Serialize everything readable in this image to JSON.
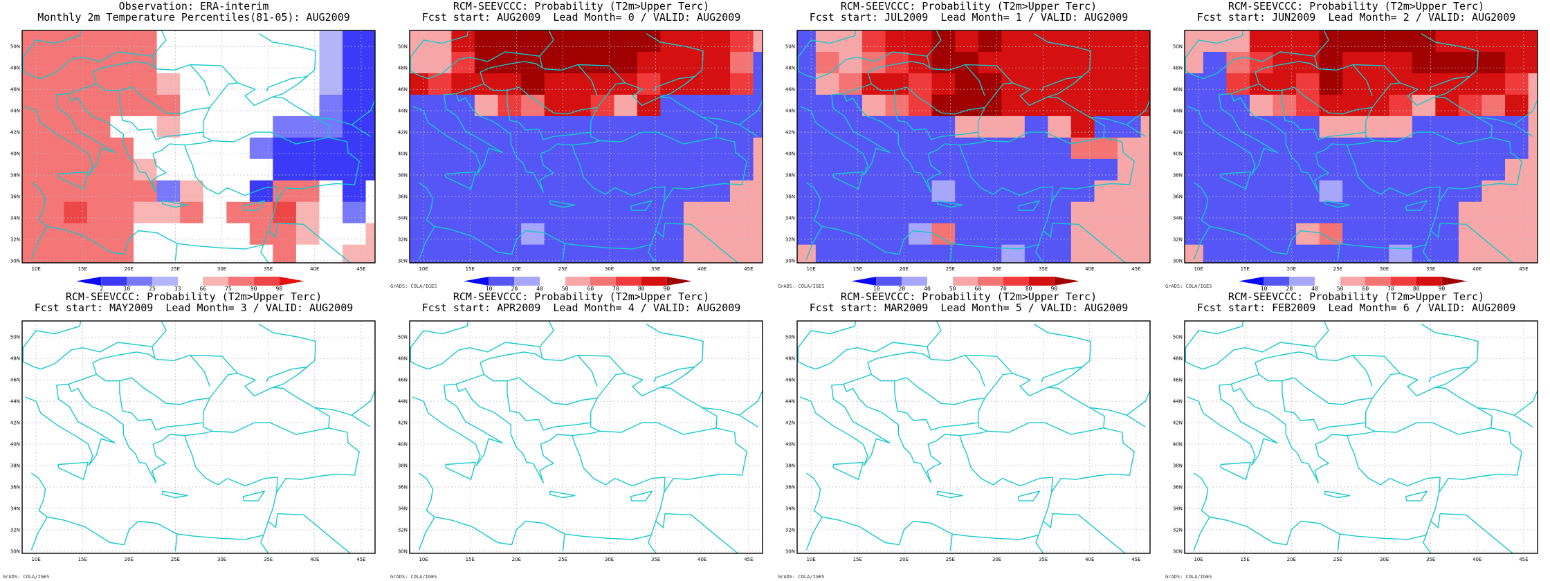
{
  "colors": {
    "coast": "#17c8cc",
    "frame": "#000000",
    "grid": "#b9b9b9"
  },
  "lat_labels": [
    "50N",
    "48N",
    "46N",
    "44N",
    "42N",
    "40N",
    "38N",
    "36N",
    "34N",
    "32N",
    "30N"
  ],
  "lon_labels": [
    "10E",
    "15E",
    "20E",
    "25E",
    "30E",
    "35E",
    "40E",
    "45E"
  ],
  "grads_label": "GrADS: COLA/IGES",
  "obs_colorbar": {
    "labels": [
      "2",
      "10",
      "25",
      "33",
      "66",
      "75",
      "90",
      "98"
    ],
    "colors": [
      "#0a0af5",
      "#3a3af8",
      "#7878fa",
      "#b4b4fb",
      "#ffffff",
      "#f9b4b4",
      "#f47676",
      "#ee4646",
      "#e61010"
    ]
  },
  "prob_colorbar": {
    "labels": [
      "10",
      "20",
      "40",
      "50",
      "60",
      "70",
      "80",
      "90"
    ],
    "colors": [
      "#0a0af5",
      "#5656f7",
      "#a6a6fa",
      "#ffffff",
      "#f7a7a7",
      "#f47373",
      "#ef3b3b",
      "#d41010",
      "#a00000"
    ]
  },
  "panels": [
    {
      "title1": "Observation: ERA-interim",
      "title2": "Monthly 2m Temperature Percentiles(81-05): AUG2009",
      "type": "obs",
      "has_grads": false
    },
    {
      "title1": "RCM-SEEVCCC: Probability (T2m>Upper Terc)",
      "title2": "Fcst start: AUG2009  Lead Month= 0 / VALID: AUG2009",
      "type": "prob",
      "has_grads": true
    },
    {
      "title1": "RCM-SEEVCCC: Probability (T2m>Upper Terc)",
      "title2": "Fcst start: JUL2009  Lead Month= 1 / VALID: AUG2009",
      "type": "prob",
      "has_grads": true
    },
    {
      "title1": "RCM-SEEVCCC: Probability (T2m>Upper Terc)",
      "title2": "Fcst start: JUN2009  Lead Month= 2 / VALID: AUG2009",
      "type": "prob",
      "has_grads": true
    },
    {
      "title1": "RCM-SEEVCCC: Probability (T2m>Upper Terc)",
      "title2": "Fcst start: MAY2009  Lead Month= 3 / VALID: AUG2009",
      "type": "empty",
      "has_grads": true
    },
    {
      "title1": "RCM-SEEVCCC: Probability (T2m>Upper Terc)",
      "title2": "Fcst start: APR2009  Lead Month= 4 / VALID: AUG2009",
      "type": "empty",
      "has_grads": true
    },
    {
      "title1": "RCM-SEEVCCC: Probability (T2m>Upper Terc)",
      "title2": "Fcst start: MAR2009  Lead Month= 5 / VALID: AUG2009",
      "type": "empty",
      "has_grads": true
    },
    {
      "title1": "RCM-SEEVCCC: Probability (T2m>Upper Terc)",
      "title2": "Fcst start: FEB2009  Lead Month= 6 / VALID: AUG2009",
      "type": "empty",
      "has_grads": true
    }
  ]
}
